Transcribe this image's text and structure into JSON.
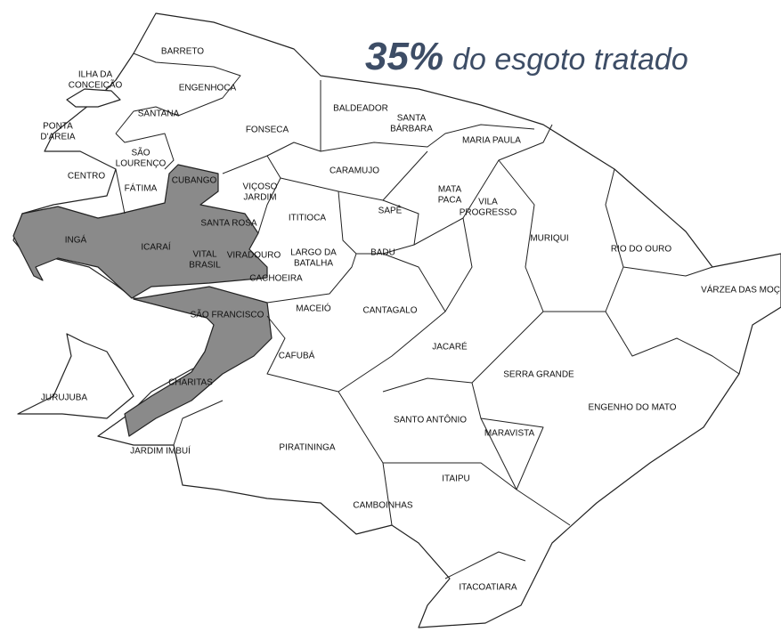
{
  "title": {
    "highlight": "35%",
    "text": "do esgoto tratado"
  },
  "neighborhoods": [
    {
      "lines": [
        "BARRETO"
      ]
    },
    {
      "lines": [
        "ILHA DA",
        "CONCEIÇÃO"
      ]
    },
    {
      "lines": [
        "ENGENHOCA"
      ]
    },
    {
      "lines": [
        "SANTANA"
      ]
    },
    {
      "lines": [
        "PONTA",
        "D'AREIA"
      ]
    },
    {
      "lines": [
        "SÃO",
        "LOURENÇO"
      ]
    },
    {
      "lines": [
        "FONSECA"
      ]
    },
    {
      "lines": [
        "BALDEADOR"
      ]
    },
    {
      "lines": [
        "SANTA",
        "BÁRBARA"
      ]
    },
    {
      "lines": [
        "MARIA PAULA"
      ]
    },
    {
      "lines": [
        "CENTRO"
      ]
    },
    {
      "lines": [
        "CUBANGO"
      ]
    },
    {
      "lines": [
        "FÁTIMA"
      ]
    },
    {
      "lines": [
        "CARAMUJO"
      ]
    },
    {
      "lines": [
        "VIÇOSO",
        "JARDIM"
      ]
    },
    {
      "lines": [
        "MATA",
        "PACA"
      ]
    },
    {
      "lines": [
        "VILA",
        "PROGRESSO"
      ]
    },
    {
      "lines": [
        "ITITIOCA"
      ]
    },
    {
      "lines": [
        "SAPÊ"
      ]
    },
    {
      "lines": [
        "INGÁ"
      ]
    },
    {
      "lines": [
        "SANTA ROSA"
      ]
    },
    {
      "lines": [
        "ICARAÍ"
      ]
    },
    {
      "lines": [
        "MURIQUI"
      ]
    },
    {
      "lines": [
        "RIO DO OURO"
      ]
    },
    {
      "lines": [
        "VITAL",
        "BRASIL"
      ]
    },
    {
      "lines": [
        "VIRADOURO"
      ]
    },
    {
      "lines": [
        "LARGO DA",
        "BATALHA"
      ]
    },
    {
      "lines": [
        "BADU"
      ]
    },
    {
      "lines": [
        "CACHOEIRA"
      ]
    },
    {
      "lines": [
        "VÁRZEA DAS MOÇ"
      ]
    },
    {
      "lines": [
        "SÃO FRANCISCO"
      ]
    },
    {
      "lines": [
        "MACEIÓ"
      ]
    },
    {
      "lines": [
        "CANTAGALO"
      ]
    },
    {
      "lines": [
        "CAFUBÁ"
      ]
    },
    {
      "lines": [
        "JACARÉ"
      ]
    },
    {
      "lines": [
        "SERRA GRANDE"
      ]
    },
    {
      "lines": [
        "JURUJUBA"
      ]
    },
    {
      "lines": [
        "CHARITAS"
      ]
    },
    {
      "lines": [
        "ENGENHO DO MATO"
      ]
    },
    {
      "lines": [
        "SANTO ANTÔNIO"
      ]
    },
    {
      "lines": [
        "MARAVISTA"
      ]
    },
    {
      "lines": [
        "JARDIM IMBUÍ"
      ]
    },
    {
      "lines": [
        "PIRATININGA"
      ]
    },
    {
      "lines": [
        "ITAIPU"
      ]
    },
    {
      "lines": [
        "CAMBOINHAS"
      ]
    },
    {
      "lines": [
        "ITACOATIARA"
      ]
    }
  ]
}
